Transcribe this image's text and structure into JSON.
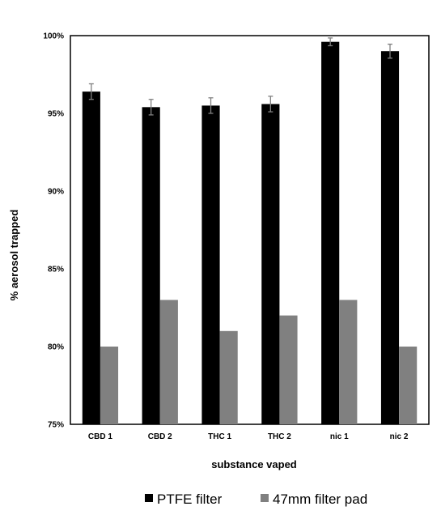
{
  "chart_data": {
    "type": "bar",
    "categories": [
      "CBD 1",
      "CBD 2",
      "THC 1",
      "THC 2",
      "nic 1",
      "nic 2"
    ],
    "series": [
      {
        "name": "PTFE filter",
        "color": "#000000",
        "values": [
          96.4,
          95.4,
          95.5,
          95.6,
          99.6,
          99.0
        ],
        "error": [
          0.5,
          0.5,
          0.5,
          0.5,
          0.25,
          0.45
        ]
      },
      {
        "name": "47mm filter pad",
        "color": "#808080",
        "values": [
          80,
          83,
          81,
          82,
          83,
          80
        ]
      }
    ],
    "xlabel": "substance vaped",
    "ylabel": "% aerosol trapped",
    "ylim": [
      75,
      100
    ],
    "yticks": [
      "75%",
      "80%",
      "85%",
      "90%",
      "95%",
      "100%"
    ],
    "grid": false,
    "legend_position": "bottom"
  }
}
